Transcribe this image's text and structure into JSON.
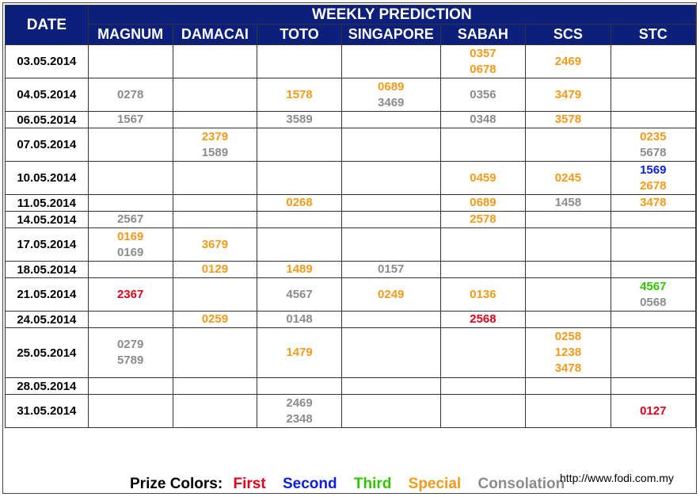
{
  "header": {
    "date_label": "DATE",
    "title": "WEEKLY PREDICTION"
  },
  "columns": [
    "MAGNUM",
    "DAMACAI",
    "TOTO",
    "SINGAPORE",
    "SABAH",
    "SCS",
    "STC"
  ],
  "colors": {
    "first": "#e0001b",
    "second": "#0a1fd8",
    "third": "#2fc600",
    "special": "#f39a1c",
    "consolation": "#8c8c8c",
    "header_bg": "#0c1f7a"
  },
  "rows": [
    {
      "date": "03.05.2014",
      "cells": [
        [],
        [],
        [],
        [],
        [
          {
            "n": "0357",
            "t": "special"
          },
          {
            "n": "0678",
            "t": "special"
          }
        ],
        [
          {
            "n": "2469",
            "t": "special"
          }
        ],
        []
      ]
    },
    {
      "date": "04.05.2014",
      "cells": [
        [
          {
            "n": "0278",
            "t": "consolation"
          }
        ],
        [],
        [
          {
            "n": "1578",
            "t": "special"
          }
        ],
        [
          {
            "n": "0689",
            "t": "special"
          },
          {
            "n": "3469",
            "t": "consolation"
          }
        ],
        [
          {
            "n": "0356",
            "t": "consolation"
          }
        ],
        [
          {
            "n": "3479",
            "t": "special"
          }
        ],
        []
      ]
    },
    {
      "date": "06.05.2014",
      "cells": [
        [
          {
            "n": "1567",
            "t": "consolation"
          }
        ],
        [],
        [
          {
            "n": "3589",
            "t": "consolation"
          }
        ],
        [],
        [
          {
            "n": "0348",
            "t": "consolation"
          }
        ],
        [
          {
            "n": "3578",
            "t": "special"
          }
        ],
        []
      ]
    },
    {
      "date": "07.05.2014",
      "cells": [
        [],
        [
          {
            "n": "2379",
            "t": "special"
          },
          {
            "n": "1589",
            "t": "consolation"
          }
        ],
        [],
        [],
        [],
        [],
        [
          {
            "n": "0235",
            "t": "special"
          },
          {
            "n": "5678",
            "t": "consolation"
          }
        ]
      ]
    },
    {
      "date": "10.05.2014",
      "cells": [
        [],
        [],
        [],
        [],
        [
          {
            "n": "0459",
            "t": "special"
          }
        ],
        [
          {
            "n": "0245",
            "t": "special"
          }
        ],
        [
          {
            "n": "1569",
            "t": "second"
          },
          {
            "n": "2678",
            "t": "special"
          }
        ]
      ]
    },
    {
      "date": "11.05.2014",
      "cells": [
        [],
        [],
        [
          {
            "n": "0268",
            "t": "special"
          }
        ],
        [],
        [
          {
            "n": "0689",
            "t": "special"
          }
        ],
        [
          {
            "n": "1458",
            "t": "consolation"
          }
        ],
        [
          {
            "n": "3478",
            "t": "special"
          }
        ]
      ]
    },
    {
      "date": "14.05.2014",
      "cells": [
        [
          {
            "n": "2567",
            "t": "consolation"
          }
        ],
        [],
        [],
        [],
        [
          {
            "n": "2578",
            "t": "special"
          }
        ],
        [],
        []
      ]
    },
    {
      "date": "17.05.2014",
      "cells": [
        [
          {
            "n": "0169",
            "t": "special"
          },
          {
            "n": "0169",
            "t": "consolation"
          }
        ],
        [
          {
            "n": "3679",
            "t": "special"
          }
        ],
        [],
        [],
        [],
        [],
        []
      ]
    },
    {
      "date": "18.05.2014",
      "cells": [
        [],
        [
          {
            "n": "0129",
            "t": "special"
          }
        ],
        [
          {
            "n": "1489",
            "t": "special"
          }
        ],
        [
          {
            "n": "0157",
            "t": "consolation"
          }
        ],
        [],
        [],
        []
      ]
    },
    {
      "date": "21.05.2014",
      "cells": [
        [
          {
            "n": "2367",
            "t": "first"
          }
        ],
        [],
        [
          {
            "n": "4567",
            "t": "consolation"
          }
        ],
        [
          {
            "n": "0249",
            "t": "special"
          }
        ],
        [
          {
            "n": "0136",
            "t": "special"
          }
        ],
        [],
        [
          {
            "n": "4567",
            "t": "third"
          },
          {
            "n": "0568",
            "t": "consolation"
          }
        ]
      ]
    },
    {
      "date": "24.05.2014",
      "cells": [
        [],
        [
          {
            "n": "0259",
            "t": "special"
          }
        ],
        [
          {
            "n": "0148",
            "t": "consolation"
          }
        ],
        [],
        [
          {
            "n": "2568",
            "t": "first"
          }
        ],
        [],
        []
      ]
    },
    {
      "date": "25.05.2014",
      "cells": [
        [
          {
            "n": "0279",
            "t": "consolation"
          },
          {
            "n": "5789",
            "t": "consolation"
          }
        ],
        [],
        [
          {
            "n": "1479",
            "t": "special"
          }
        ],
        [],
        [],
        [
          {
            "n": "0258",
            "t": "special"
          },
          {
            "n": "1238",
            "t": "special"
          },
          {
            "n": "3478",
            "t": "special"
          }
        ],
        []
      ]
    },
    {
      "date": "28.05.2014",
      "cells": [
        [],
        [],
        [],
        [],
        [],
        [],
        []
      ]
    },
    {
      "date": "31.05.2014",
      "cells": [
        [],
        [],
        [
          {
            "n": "2469",
            "t": "consolation"
          },
          {
            "n": "2348",
            "t": "consolation"
          }
        ],
        [],
        [],
        [],
        [
          {
            "n": "0127",
            "t": "first"
          }
        ]
      ]
    }
  ],
  "legend": {
    "title": "Prize Colors:",
    "first": "First",
    "second": "Second",
    "third": "Third",
    "special": "Special",
    "consolation": "Consolation"
  },
  "footer": {
    "site": "http://www.fodi.com.my"
  }
}
